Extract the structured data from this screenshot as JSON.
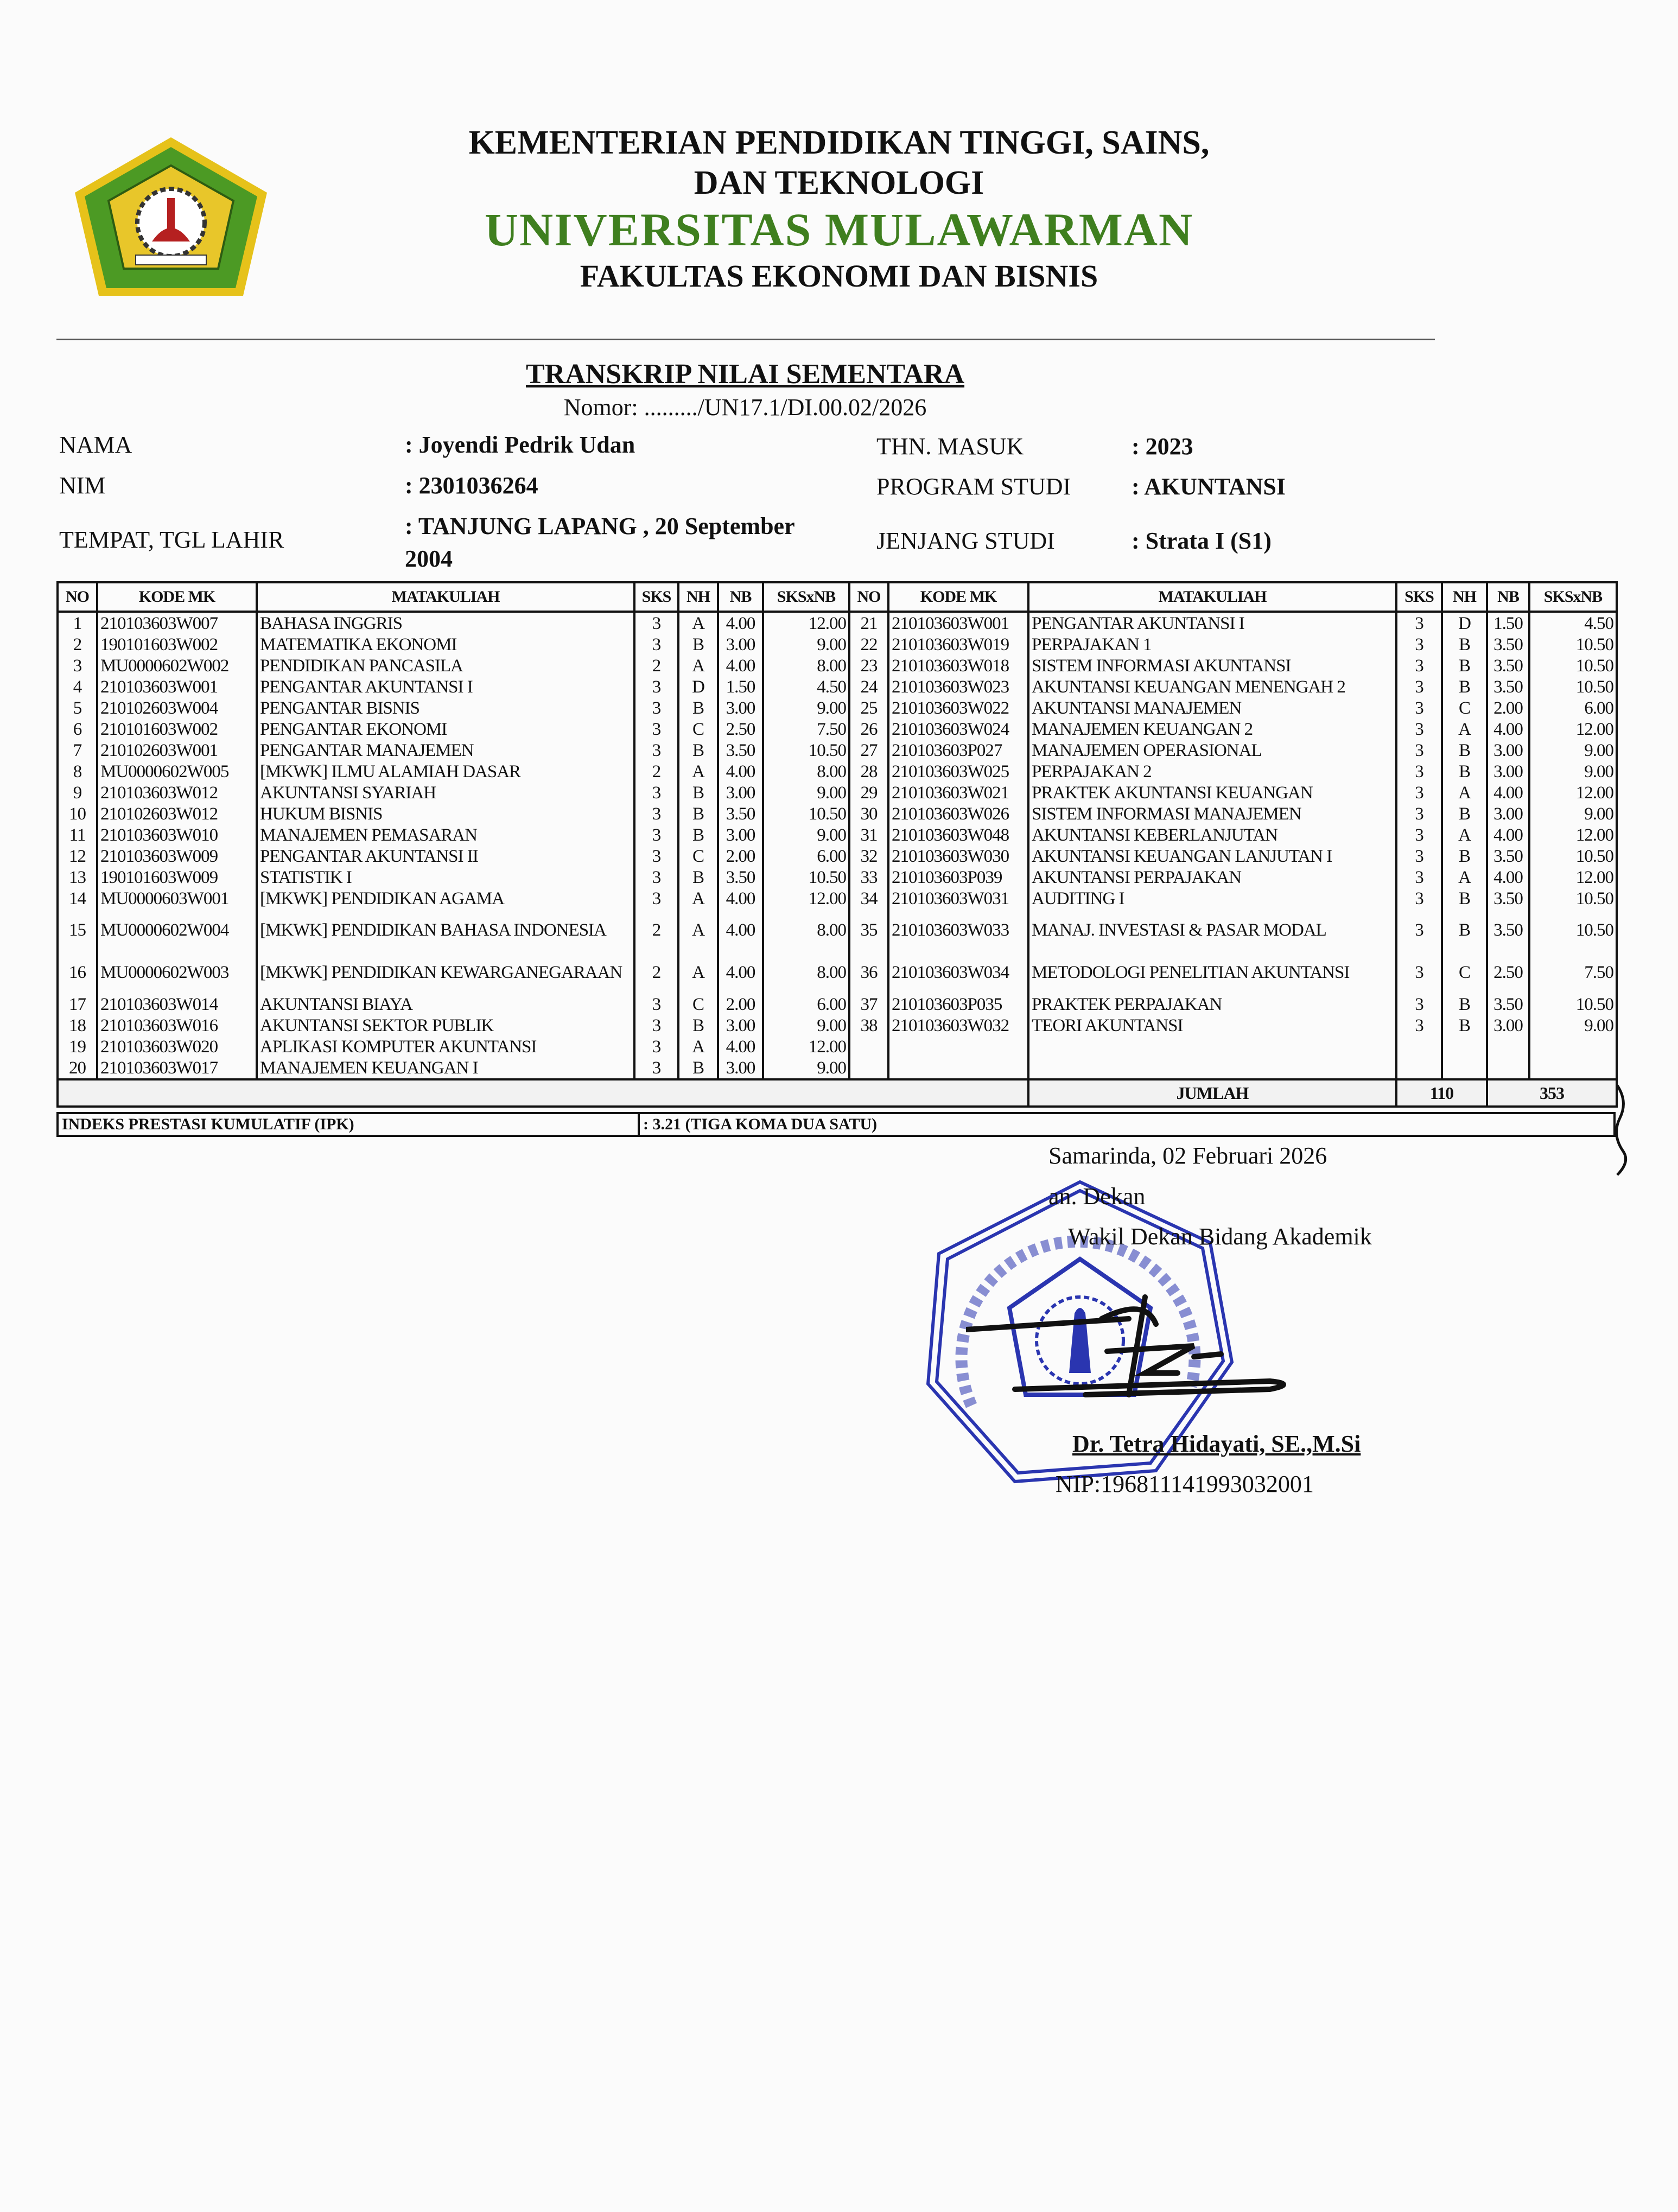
{
  "header": {
    "line1": "KEMENTERIAN PENDIDIKAN TINGGI, SAINS,",
    "line2": "DAN TEKNOLOGI",
    "university": "UNIVERSITAS MULAWARMAN",
    "faculty": "FAKULTAS EKONOMI DAN BISNIS",
    "logo_text": "UNIVERSITAS MULAWARMAN",
    "accent_color": "#3f7f1f"
  },
  "document": {
    "title": "TRANSKRIP NILAI SEMENTARA",
    "number": "Nomor: ........./UN17.1/DI.00.02/2026"
  },
  "student": {
    "name_label": "NAMA",
    "name": ": Joyendi Pedrik Udan",
    "nim_label": "NIM",
    "nim": ": 2301036264",
    "birth_label": "TEMPAT, TGL LAHIR",
    "birth": ": TANJUNG LAPANG , 20 September 2004",
    "year_label": "THN. MASUK",
    "year": ": 2023",
    "program_label": "PROGRAM STUDI",
    "program": ": AKUNTANSI",
    "level_label": "JENJANG STUDI",
    "level": ": Strata I (S1)"
  },
  "table": {
    "headers": [
      "NO",
      "KODE MK",
      "MATAKULIAH",
      "SKS",
      "NH",
      "NB",
      "SKSxNB"
    ],
    "rows": [
      [
        "1",
        "210103603W007",
        "BAHASA INGGRIS",
        "3",
        "A",
        "4.00",
        "12.00"
      ],
      [
        "2",
        "190101603W002",
        "MATEMATIKA EKONOMI",
        "3",
        "B",
        "3.00",
        "9.00"
      ],
      [
        "3",
        "MU0000602W002",
        "PENDIDIKAN PANCASILA",
        "2",
        "A",
        "4.00",
        "8.00"
      ],
      [
        "4",
        "210103603W001",
        "PENGANTAR AKUNTANSI I",
        "3",
        "D",
        "1.50",
        "4.50"
      ],
      [
        "5",
        "210102603W004",
        "PENGANTAR BISNIS",
        "3",
        "B",
        "3.00",
        "9.00"
      ],
      [
        "6",
        "210101603W002",
        "PENGANTAR EKONOMI",
        "3",
        "C",
        "2.50",
        "7.50"
      ],
      [
        "7",
        "210102603W001",
        "PENGANTAR MANAJEMEN",
        "3",
        "B",
        "3.50",
        "10.50"
      ],
      [
        "8",
        "MU0000602W005",
        "[MKWK] ILMU ALAMIAH DASAR",
        "2",
        "A",
        "4.00",
        "8.00"
      ],
      [
        "9",
        "210103603W012",
        "AKUNTANSI SYARIAH",
        "3",
        "B",
        "3.00",
        "9.00"
      ],
      [
        "10",
        "210102603W012",
        "HUKUM BISNIS",
        "3",
        "B",
        "3.50",
        "10.50"
      ],
      [
        "11",
        "210103603W010",
        "MANAJEMEN PEMASARAN",
        "3",
        "B",
        "3.00",
        "9.00"
      ],
      [
        "12",
        "210103603W009",
        "PENGANTAR AKUNTANSI II",
        "3",
        "C",
        "2.00",
        "6.00"
      ],
      [
        "13",
        "190101603W009",
        "STATISTIK I",
        "3",
        "B",
        "3.50",
        "10.50"
      ],
      [
        "14",
        "MU0000603W001",
        "[MKWK] PENDIDIKAN AGAMA",
        "3",
        "A",
        "4.00",
        "12.00"
      ],
      [
        "15",
        "MU0000602W004",
        "[MKWK] PENDIDIKAN BAHASA INDONESIA",
        "2",
        "A",
        "4.00",
        "8.00"
      ],
      [
        "16",
        "MU0000602W003",
        "[MKWK] PENDIDIKAN KEWARGANEGARAAN",
        "2",
        "A",
        "4.00",
        "8.00"
      ],
      [
        "17",
        "210103603W014",
        "AKUNTANSI BIAYA",
        "3",
        "C",
        "2.00",
        "6.00"
      ],
      [
        "18",
        "210103603W016",
        "AKUNTANSI SEKTOR PUBLIK",
        "3",
        "B",
        "3.00",
        "9.00"
      ],
      [
        "19",
        "210103603W020",
        "APLIKASI KOMPUTER AKUNTANSI",
        "3",
        "A",
        "4.00",
        "12.00"
      ],
      [
        "20",
        "210103603W017",
        "MANAJEMEN KEUANGAN I",
        "3",
        "B",
        "3.00",
        "9.00"
      ],
      [
        "21",
        "210103603W001",
        "PENGANTAR AKUNTANSI I",
        "3",
        "D",
        "1.50",
        "4.50"
      ],
      [
        "22",
        "210103603W019",
        "PERPAJAKAN 1",
        "3",
        "B",
        "3.50",
        "10.50"
      ],
      [
        "23",
        "210103603W018",
        "SISTEM INFORMASI AKUNTANSI",
        "3",
        "B",
        "3.50",
        "10.50"
      ],
      [
        "24",
        "210103603W023",
        "AKUNTANSI KEUANGAN MENENGAH 2",
        "3",
        "B",
        "3.50",
        "10.50"
      ],
      [
        "25",
        "210103603W022",
        "AKUNTANSI MANAJEMEN",
        "3",
        "C",
        "2.00",
        "6.00"
      ],
      [
        "26",
        "210103603W024",
        "MANAJEMEN KEUANGAN 2",
        "3",
        "A",
        "4.00",
        "12.00"
      ],
      [
        "27",
        "210103603P027",
        "MANAJEMEN OPERASIONAL",
        "3",
        "B",
        "3.00",
        "9.00"
      ],
      [
        "28",
        "210103603W025",
        "PERPAJAKAN 2",
        "3",
        "B",
        "3.00",
        "9.00"
      ],
      [
        "29",
        "210103603W021",
        "PRAKTEK AKUNTANSI KEUANGAN",
        "3",
        "A",
        "4.00",
        "12.00"
      ],
      [
        "30",
        "210103603W026",
        "SISTEM INFORMASI MANAJEMEN",
        "3",
        "B",
        "3.00",
        "9.00"
      ],
      [
        "31",
        "210103603W048",
        "AKUNTANSI KEBERLANJUTAN",
        "3",
        "A",
        "4.00",
        "12.00"
      ],
      [
        "32",
        "210103603W030",
        "AKUNTANSI KEUANGAN LANJUTAN I",
        "3",
        "B",
        "3.50",
        "10.50"
      ],
      [
        "33",
        "210103603P039",
        "AKUNTANSI PERPAJAKAN",
        "3",
        "A",
        "4.00",
        "12.00"
      ],
      [
        "34",
        "210103603W031",
        "AUDITING I",
        "3",
        "B",
        "3.50",
        "10.50"
      ],
      [
        "35",
        "210103603W033",
        "MANAJ. INVESTASI & PASAR MODAL",
        "3",
        "B",
        "3.50",
        "10.50"
      ],
      [
        "36",
        "210103603W034",
        "METODOLOGI PENELITIAN AKUNTANSI",
        "3",
        "C",
        "2.50",
        "7.50"
      ],
      [
        "37",
        "210103603P035",
        "PRAKTEK PERPAJAKAN",
        "3",
        "B",
        "3.50",
        "10.50"
      ],
      [
        "38",
        "210103603W032",
        "TEORI AKUNTANSI",
        "3",
        "B",
        "3.00",
        "9.00"
      ]
    ],
    "total_label": "JUMLAH",
    "total_sks": "110",
    "total_sksxnb": "353",
    "ipk_label": "INDEKS PRESTASI KUMULATIF (IPK)",
    "ipk_value": ": 3.21 (TIGA KOMA DUA SATU)"
  },
  "signature": {
    "place_date": "Samarinda, 02 Februari 2026",
    "on_behalf": "an. Dekan",
    "position": "Wakil Dekan Bidang Akademik",
    "name": "Dr. Tetra Hidayati, SE.,M.Si",
    "nip": "NIP:196811141993032001",
    "stamp_text": "KEMENTERIAN PENDIDIKAN TINGGI, SAINS, DAN TEKNOLOGI - UNIVERSITAS MULAWARMAN - FAKULTAS EKONOMI DAN BISNIS",
    "stamp_color": "#2a35b0"
  }
}
